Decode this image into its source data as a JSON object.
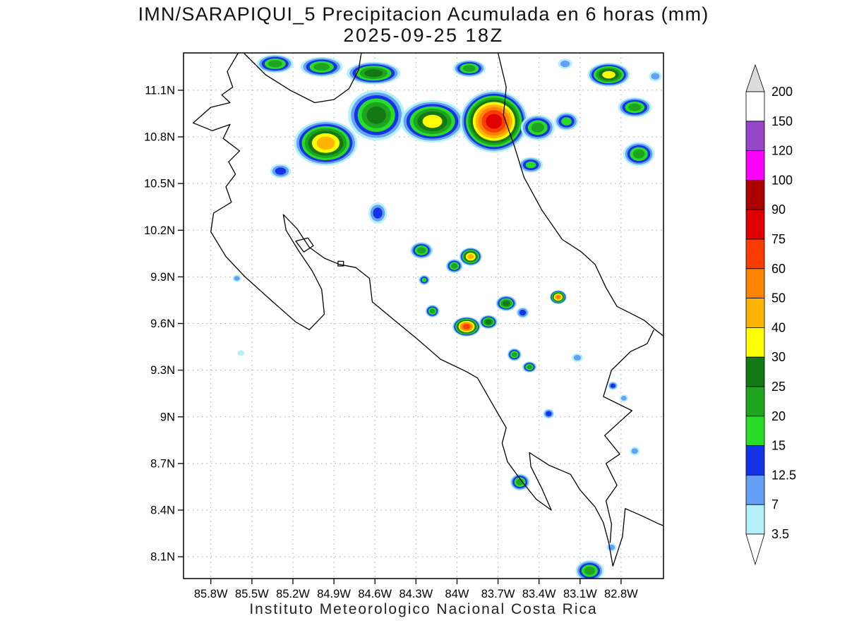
{
  "title": {
    "line1": "IMN/SARAPIQUI_5 Precipitacion Acumulada en 6 horas (mm)",
    "line2": "2025-09-25 18Z"
  },
  "footer": "Instituto Meteorologico Nacional Costa Rica",
  "chart_data": {
    "type": "heatmap",
    "title": "IMN/SARAPIQUI_5 Precipitacion Acumulada en 6 horas (mm)",
    "subtitle": "2025-09-25 18Z",
    "units": "mm",
    "lat_ticks": [
      "11.1N",
      "10.8N",
      "10.5N",
      "10.2N",
      "9.9N",
      "9.6N",
      "9.3N",
      "9N",
      "8.7N",
      "8.4N",
      "8.1N"
    ],
    "lon_ticks": [
      "85.8W",
      "85.5W",
      "85.2W",
      "84.9W",
      "84.6W",
      "84.3W",
      "84W",
      "83.7W",
      "83.4W",
      "83.1W",
      "82.8W"
    ],
    "lon_range_w": [
      86.0,
      82.49
    ],
    "lat_range_n": [
      7.96,
      11.34
    ],
    "levels_mm": [
      3.5,
      7,
      12.5,
      15,
      20,
      25,
      30,
      40,
      50,
      60,
      75,
      90,
      100,
      120,
      150,
      200
    ],
    "palette": [
      "#b4f0fa",
      "#64a0f5",
      "#1432e6",
      "#28dc28",
      "#1ea41e",
      "#147814",
      "#ffff00",
      "#ffb400",
      "#ff8200",
      "#fa3c00",
      "#e00000",
      "#aa0000",
      "#ff00ff",
      "#9646c8",
      "#ffffff"
    ],
    "cells": [
      {
        "lon": 85.33,
        "lat": 11.27,
        "rx": 0.134,
        "ry": 0.059,
        "max": 4
      },
      {
        "lon": 84.99,
        "lat": 11.25,
        "rx": 0.155,
        "ry": 0.064,
        "max": 4
      },
      {
        "lon": 84.61,
        "lat": 11.21,
        "rx": 0.196,
        "ry": 0.073,
        "max": 5
      },
      {
        "lon": 83.91,
        "lat": 11.24,
        "rx": 0.12,
        "ry": 0.055,
        "max": 4
      },
      {
        "lon": 84.96,
        "lat": 10.76,
        "rx": 0.232,
        "ry": 0.145,
        "max": 7
      },
      {
        "lon": 84.59,
        "lat": 10.94,
        "rx": 0.207,
        "ry": 0.163,
        "max": 5
      },
      {
        "lon": 84.18,
        "lat": 10.9,
        "rx": 0.232,
        "ry": 0.136,
        "max": 6
      },
      {
        "lon": 83.73,
        "lat": 10.9,
        "rx": 0.248,
        "ry": 0.2,
        "max": 10
      },
      {
        "lon": 83.41,
        "lat": 10.86,
        "rx": 0.124,
        "ry": 0.082,
        "max": 4
      },
      {
        "lon": 83.2,
        "lat": 10.9,
        "rx": 0.088,
        "ry": 0.059,
        "max": 3
      },
      {
        "lon": 82.89,
        "lat": 11.2,
        "rx": 0.155,
        "ry": 0.077,
        "max": 6
      },
      {
        "lon": 82.7,
        "lat": 10.99,
        "rx": 0.124,
        "ry": 0.064,
        "max": 4
      },
      {
        "lon": 82.67,
        "lat": 10.69,
        "rx": 0.114,
        "ry": 0.077,
        "max": 4
      },
      {
        "lon": 83.46,
        "lat": 10.62,
        "rx": 0.088,
        "ry": 0.05,
        "max": 3
      },
      {
        "lon": 85.29,
        "lat": 10.58,
        "rx": 0.077,
        "ry": 0.045,
        "max": 2
      },
      {
        "lon": 83.21,
        "lat": 11.27,
        "rx": 0.052,
        "ry": 0.032,
        "max": 1
      },
      {
        "lon": 82.55,
        "lat": 11.19,
        "rx": 0.046,
        "ry": 0.032,
        "max": 1
      },
      {
        "lon": 84.58,
        "lat": 10.31,
        "rx": 0.067,
        "ry": 0.068,
        "max": 2
      },
      {
        "lon": 84.26,
        "lat": 10.07,
        "rx": 0.083,
        "ry": 0.054,
        "max": 4
      },
      {
        "lon": 84.02,
        "lat": 9.97,
        "rx": 0.062,
        "ry": 0.045,
        "max": 4
      },
      {
        "lon": 83.9,
        "lat": 10.03,
        "rx": 0.083,
        "ry": 0.059,
        "max": 7
      },
      {
        "lon": 84.24,
        "lat": 9.88,
        "rx": 0.041,
        "ry": 0.032,
        "max": 3
      },
      {
        "lon": 84.18,
        "lat": 9.68,
        "rx": 0.052,
        "ry": 0.041,
        "max": 4
      },
      {
        "lon": 83.93,
        "lat": 9.58,
        "rx": 0.103,
        "ry": 0.064,
        "max": 9
      },
      {
        "lon": 83.77,
        "lat": 9.61,
        "rx": 0.067,
        "ry": 0.045,
        "max": 5
      },
      {
        "lon": 83.64,
        "lat": 9.73,
        "rx": 0.077,
        "ry": 0.05,
        "max": 5
      },
      {
        "lon": 83.52,
        "lat": 9.67,
        "rx": 0.046,
        "ry": 0.036,
        "max": 2
      },
      {
        "lon": 83.26,
        "lat": 9.77,
        "rx": 0.062,
        "ry": 0.045,
        "max": 8
      },
      {
        "lon": 83.58,
        "lat": 9.4,
        "rx": 0.052,
        "ry": 0.041,
        "max": 4
      },
      {
        "lon": 83.47,
        "lat": 9.32,
        "rx": 0.052,
        "ry": 0.036,
        "max": 4
      },
      {
        "lon": 83.12,
        "lat": 9.38,
        "rx": 0.041,
        "ry": 0.027,
        "max": 1
      },
      {
        "lon": 83.33,
        "lat": 9.02,
        "rx": 0.041,
        "ry": 0.032,
        "max": 2
      },
      {
        "lon": 82.86,
        "lat": 9.2,
        "rx": 0.036,
        "ry": 0.027,
        "max": 2
      },
      {
        "lon": 82.78,
        "lat": 9.12,
        "rx": 0.031,
        "ry": 0.023,
        "max": 1
      },
      {
        "lon": 82.7,
        "lat": 8.78,
        "rx": 0.036,
        "ry": 0.027,
        "max": 1
      },
      {
        "lon": 83.54,
        "lat": 8.58,
        "rx": 0.072,
        "ry": 0.054,
        "max": 4
      },
      {
        "lon": 83.03,
        "lat": 8.01,
        "rx": 0.103,
        "ry": 0.068,
        "max": 4
      },
      {
        "lon": 82.87,
        "lat": 8.16,
        "rx": 0.036,
        "ry": 0.027,
        "max": 1
      },
      {
        "lon": 85.61,
        "lat": 9.89,
        "rx": 0.031,
        "ry": 0.023,
        "max": 1
      },
      {
        "lon": 85.58,
        "lat": 9.41,
        "rx": 0.026,
        "ry": 0.018,
        "max": 0
      }
    ]
  },
  "colorbar": {
    "labels": [
      "200",
      "150",
      "120",
      "100",
      "90",
      "75",
      "60",
      "50",
      "40",
      "30",
      "25",
      "20",
      "15",
      "12.5",
      "7",
      "3.5"
    ],
    "arrow_top_color": "#dcdcdc",
    "arrow_bottom_color": "#ffffff"
  },
  "map": {
    "grid_color": "#a8a8a8",
    "coastlines": [
      {
        "name": "pacific-coast",
        "pts": [
          [
            85.6,
            11.34
          ],
          [
            85.68,
            11.22
          ],
          [
            85.64,
            11.12
          ],
          [
            85.72,
            11.07
          ],
          [
            85.66,
            11.02
          ],
          [
            85.8,
            10.99
          ],
          [
            85.93,
            10.89
          ],
          [
            85.79,
            10.84
          ],
          [
            85.66,
            10.88
          ],
          [
            85.71,
            10.79
          ],
          [
            85.59,
            10.71
          ],
          [
            85.67,
            10.64
          ],
          [
            85.62,
            10.56
          ],
          [
            85.69,
            10.48
          ],
          [
            85.65,
            10.38
          ],
          [
            85.78,
            10.31
          ],
          [
            85.8,
            10.19
          ],
          [
            85.69,
            10.03
          ],
          [
            85.55,
            9.9
          ],
          [
            85.36,
            9.75
          ],
          [
            85.18,
            9.61
          ],
          [
            85.08,
            9.56
          ],
          [
            84.97,
            9.66
          ],
          [
            84.99,
            9.82
          ],
          [
            85.06,
            9.94
          ],
          [
            85.16,
            10.07
          ],
          [
            85.25,
            10.2
          ],
          [
            85.27,
            10.3
          ],
          [
            85.17,
            10.21
          ],
          [
            85.08,
            10.09
          ],
          [
            84.97,
            10.02
          ],
          [
            84.86,
            9.98
          ],
          [
            84.74,
            9.96
          ],
          [
            84.64,
            9.89
          ],
          [
            84.62,
            9.74
          ],
          [
            84.47,
            9.63
          ],
          [
            84.29,
            9.5
          ],
          [
            84.12,
            9.37
          ],
          [
            83.93,
            9.29
          ],
          [
            83.85,
            9.25
          ],
          [
            83.7,
            9.02
          ],
          [
            83.64,
            8.93
          ],
          [
            83.67,
            8.83
          ],
          [
            83.63,
            8.71
          ],
          [
            83.53,
            8.59
          ],
          [
            83.42,
            8.47
          ],
          [
            83.31,
            8.4
          ],
          [
            83.38,
            8.54
          ],
          [
            83.46,
            8.68
          ],
          [
            83.47,
            8.77
          ],
          [
            83.33,
            8.69
          ],
          [
            83.17,
            8.63
          ],
          [
            83.1,
            8.53
          ],
          [
            82.99,
            8.42
          ],
          [
            82.93,
            8.32
          ],
          [
            82.89,
            8.19
          ],
          [
            82.86,
            8.04
          ],
          [
            82.79,
            8.23
          ],
          [
            82.77,
            8.41
          ],
          [
            82.64,
            8.36
          ],
          [
            82.52,
            8.31
          ],
          [
            82.49,
            8.3
          ]
        ]
      },
      {
        "name": "caribbean-coast",
        "pts": [
          [
            83.7,
            11.34
          ],
          [
            83.64,
            11.12
          ],
          [
            83.66,
            10.94
          ],
          [
            83.58,
            10.74
          ],
          [
            83.51,
            10.54
          ],
          [
            83.38,
            10.33
          ],
          [
            83.23,
            10.14
          ],
          [
            83.09,
            10.06
          ],
          [
            82.99,
            9.98
          ],
          [
            82.91,
            9.83
          ],
          [
            82.83,
            9.71
          ],
          [
            82.74,
            9.67
          ],
          [
            82.63,
            9.62
          ],
          [
            82.55,
            9.56
          ],
          [
            82.49,
            9.52
          ]
        ]
      },
      {
        "name": "panama-border",
        "pts": [
          [
            82.56,
            9.56
          ],
          [
            82.61,
            9.47
          ],
          [
            82.73,
            9.42
          ],
          [
            82.87,
            9.3
          ],
          [
            82.93,
            9.13
          ],
          [
            82.72,
            9.04
          ],
          [
            82.92,
            8.88
          ],
          [
            82.81,
            8.76
          ],
          [
            82.91,
            8.7
          ],
          [
            82.83,
            8.56
          ],
          [
            82.91,
            8.46
          ],
          [
            82.87,
            8.31
          ],
          [
            82.88,
            8.19
          ]
        ]
      },
      {
        "name": "lake-nicaragua-shore",
        "pts": [
          [
            85.56,
            11.34
          ],
          [
            85.4,
            11.2
          ],
          [
            85.22,
            11.1
          ],
          [
            85.04,
            11.02
          ],
          [
            84.9,
            11.04
          ],
          [
            84.79,
            11.11
          ],
          [
            84.72,
            11.23
          ],
          [
            84.7,
            11.34
          ]
        ]
      },
      {
        "name": "isla-chira",
        "closed": true,
        "pts": [
          [
            85.18,
            10.13
          ],
          [
            85.09,
            10.15
          ],
          [
            85.05,
            10.1
          ],
          [
            85.12,
            10.06
          ]
        ]
      },
      {
        "name": "isla-san-lucas",
        "closed": true,
        "pts": [
          [
            84.87,
            10.0
          ],
          [
            84.83,
            10.0
          ],
          [
            84.83,
            9.97
          ],
          [
            84.87,
            9.97
          ]
        ]
      }
    ]
  }
}
